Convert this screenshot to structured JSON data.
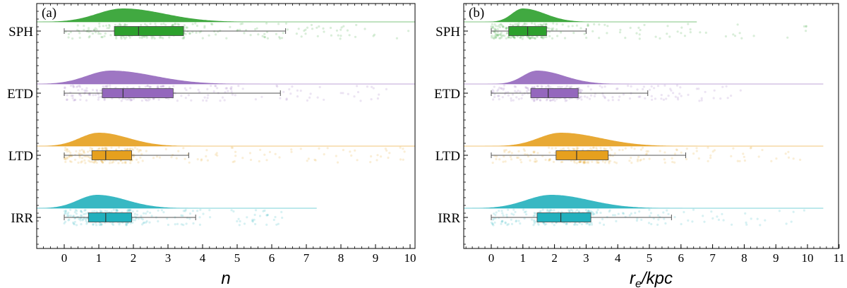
{
  "chart_data": [
    {
      "type": "raincloud",
      "panel_label": "(a)",
      "xlabel": "n",
      "xlim": [
        -0.8,
        10
      ],
      "xticks": [
        0,
        1,
        2,
        3,
        4,
        5,
        6,
        7,
        8,
        9,
        10
      ],
      "categories": [
        "SPH",
        "ETD",
        "LTD",
        "IRR"
      ],
      "series": [
        {
          "name": "SPH",
          "color": "#2ca02c",
          "box": {
            "min": 0,
            "q1": 1.45,
            "median": 2.15,
            "q3": 3.45,
            "max": 6.4
          },
          "kde_mode": 1.7,
          "kde_sd_left": 0.75,
          "kde_sd_right": 1.2,
          "kde_end": 10.2,
          "points_range": [
            0,
            10
          ]
        },
        {
          "name": "ETD",
          "color": "#9467bd",
          "box": {
            "min": 0,
            "q1": 1.1,
            "median": 1.7,
            "q3": 3.15,
            "max": 6.25
          },
          "kde_mode": 1.35,
          "kde_sd_left": 0.7,
          "kde_sd_right": 1.25,
          "kde_end": 10.2,
          "points_range": [
            0,
            9.5
          ]
        },
        {
          "name": "LTD",
          "color": "#e6a01e",
          "box": {
            "min": 0,
            "q1": 0.8,
            "median": 1.2,
            "q3": 1.95,
            "max": 3.6
          },
          "kde_mode": 1.0,
          "kde_sd_left": 0.55,
          "kde_sd_right": 0.85,
          "kde_end": 10.2,
          "points_range": [
            0,
            10
          ]
        },
        {
          "name": "IRR",
          "color": "#22b0bd",
          "box": {
            "min": 0,
            "q1": 0.7,
            "median": 1.2,
            "q3": 1.95,
            "max": 3.8
          },
          "kde_mode": 0.95,
          "kde_sd_left": 0.55,
          "kde_sd_right": 0.85,
          "kde_end": 7.3,
          "points_range": [
            0,
            6.5
          ]
        }
      ]
    },
    {
      "type": "raincloud",
      "panel_label": "(b)",
      "xlabel": "r",
      "xlabel_sub": "e",
      "xlabel_suffix": "/kpc",
      "xlim": [
        -0.9,
        11
      ],
      "xticks": [
        0,
        1,
        2,
        3,
        4,
        5,
        6,
        7,
        8,
        9,
        10,
        11
      ],
      "categories": [
        "SPH",
        "ETD",
        "LTD",
        "IRR"
      ],
      "series": [
        {
          "name": "SPH",
          "color": "#2ca02c",
          "box": {
            "min": 0,
            "q1": 0.55,
            "median": 1.15,
            "q3": 1.75,
            "max": 3.0
          },
          "kde_mode": 1.0,
          "kde_sd_left": 0.35,
          "kde_sd_right": 0.7,
          "kde_end": 6.5,
          "points_range": [
            0,
            10
          ]
        },
        {
          "name": "ETD",
          "color": "#9467bd",
          "box": {
            "min": 0,
            "q1": 1.25,
            "median": 1.8,
            "q3": 2.75,
            "max": 4.95
          },
          "kde_mode": 1.45,
          "kde_sd_left": 0.45,
          "kde_sd_right": 0.85,
          "kde_end": 10.5,
          "points_range": [
            0,
            8
          ]
        },
        {
          "name": "LTD",
          "color": "#e6a01e",
          "box": {
            "min": 0,
            "q1": 2.05,
            "median": 2.7,
            "q3": 3.7,
            "max": 6.15
          },
          "kde_mode": 2.2,
          "kde_sd_left": 0.7,
          "kde_sd_right": 1.25,
          "kde_end": 10.5,
          "points_range": [
            0,
            10
          ]
        },
        {
          "name": "IRR",
          "color": "#22b0bd",
          "box": {
            "min": 0,
            "q1": 1.45,
            "median": 2.2,
            "q3": 3.15,
            "max": 5.7
          },
          "kde_mode": 1.9,
          "kde_sd_left": 0.8,
          "kde_sd_right": 1.2,
          "kde_end": 10.5,
          "points_range": [
            0,
            10
          ]
        }
      ]
    }
  ]
}
